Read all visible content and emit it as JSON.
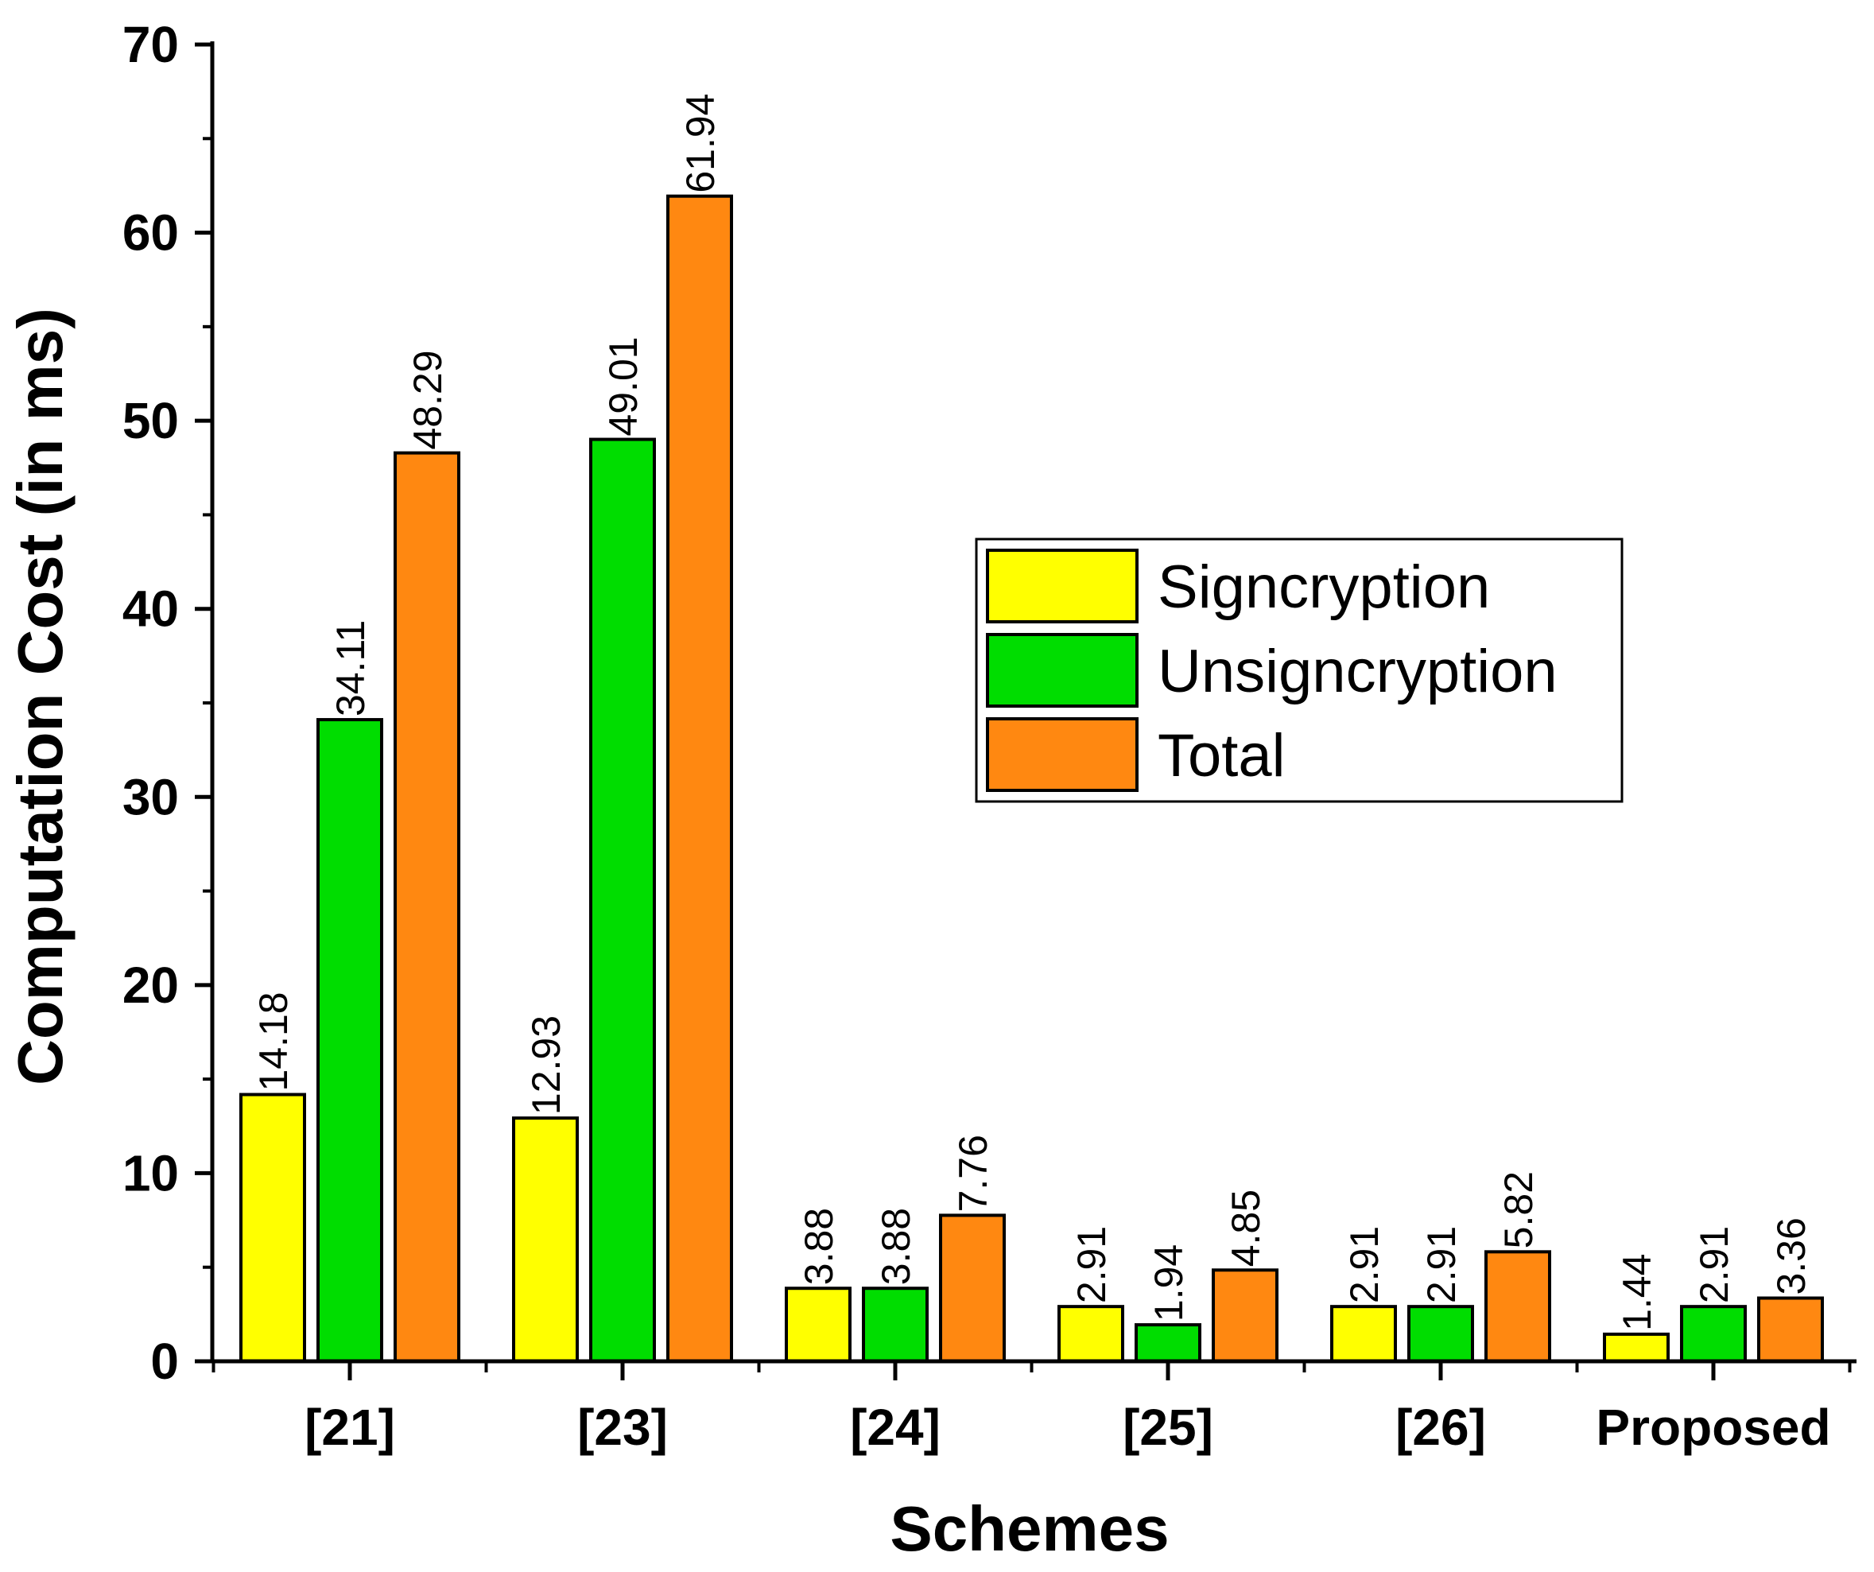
{
  "chart_data": {
    "type": "bar",
    "xlabel": "Schemes",
    "ylabel": "Computation Cost (in ms)",
    "categories": [
      "[21]",
      "[23]",
      "[24]",
      "[25]",
      "[26]",
      "Proposed"
    ],
    "ylim": [
      0,
      70
    ],
    "yticks": [
      0,
      10,
      20,
      30,
      40,
      50,
      60,
      70
    ],
    "legend_position": "center-right",
    "series": [
      {
        "name": "Signcryption",
        "color": "#ffff00",
        "values": [
          14.18,
          12.93,
          3.88,
          2.91,
          2.91,
          1.44
        ]
      },
      {
        "name": "Unsigncryption",
        "color": "#00dd00",
        "values": [
          34.11,
          49.01,
          3.88,
          1.94,
          2.91,
          2.91
        ]
      },
      {
        "name": "Total",
        "color": "#ff8811",
        "values": [
          48.29,
          61.94,
          7.76,
          4.85,
          5.82,
          3.36
        ]
      }
    ],
    "data_labels": [
      [
        "14.18",
        "12.93",
        "3.88",
        "2.91",
        "2.91",
        "1.44"
      ],
      [
        "34.11",
        "49.01",
        "3.88",
        "1.94",
        "2.91",
        "2.91"
      ],
      [
        "48.29",
        "61.94",
        "7.76",
        "4.85",
        "5.82",
        "3.36"
      ]
    ]
  }
}
